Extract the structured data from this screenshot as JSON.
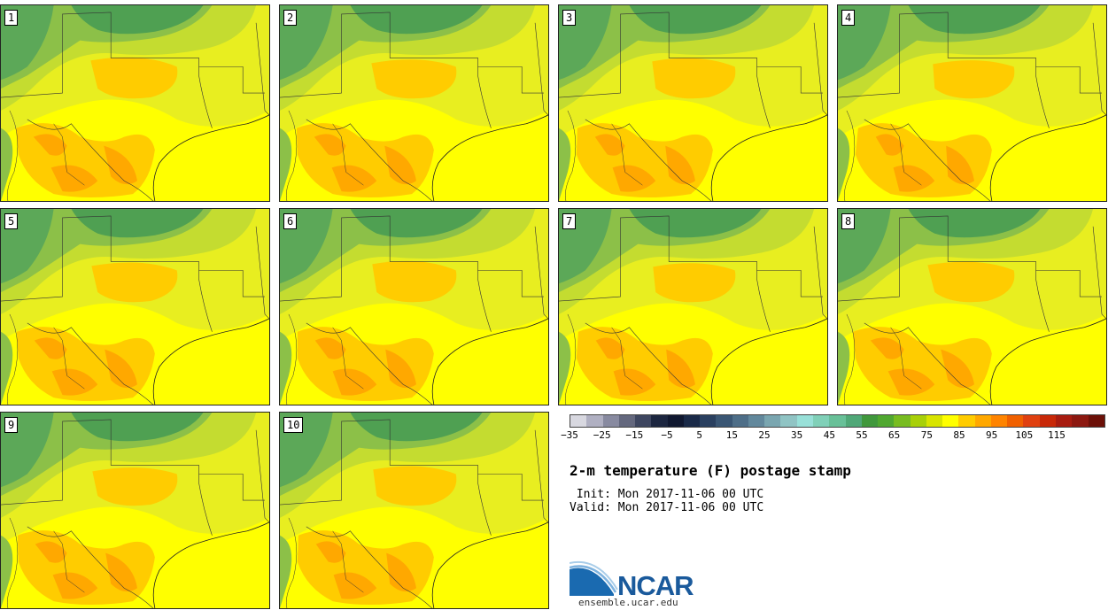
{
  "panels": [
    {
      "label": "1"
    },
    {
      "label": "2"
    },
    {
      "label": "3"
    },
    {
      "label": "4"
    },
    {
      "label": "5"
    },
    {
      "label": "6"
    },
    {
      "label": "7"
    },
    {
      "label": "8"
    },
    {
      "label": "9"
    },
    {
      "label": "10"
    }
  ],
  "colorbar": {
    "colors": [
      "#d8d8e0",
      "#b0b0c2",
      "#888aa0",
      "#64687e",
      "#3e4660",
      "#1c2640",
      "#101830",
      "#1a2a48",
      "#2a4060",
      "#3a5674",
      "#4e6e88",
      "#62889c",
      "#7aa6b0",
      "#90c4c4",
      "#98e0d8",
      "#80d0b8",
      "#68c098",
      "#50a878",
      "#40983c",
      "#50a830",
      "#78bc20",
      "#a8d008",
      "#d8e400",
      "#ffff00",
      "#ffcc00",
      "#ffa800",
      "#ff8400",
      "#f06000",
      "#e04010",
      "#c82808",
      "#a81c10",
      "#8c1810",
      "#6c1008"
    ],
    "ticks": [
      "-35",
      "-25",
      "-15",
      "-5",
      "5",
      "15",
      "25",
      "35",
      "45",
      "55",
      "65",
      "75",
      "85",
      "95",
      "105",
      "115"
    ]
  },
  "title": "2-m temperature (F) postage stamp",
  "init": " Init: Mon 2017-11-06 00 UTC",
  "valid": "Valid: Mon 2017-11-06 00 UTC",
  "logo": {
    "text": "NCAR",
    "url": "ensemble.ucar.edu"
  }
}
